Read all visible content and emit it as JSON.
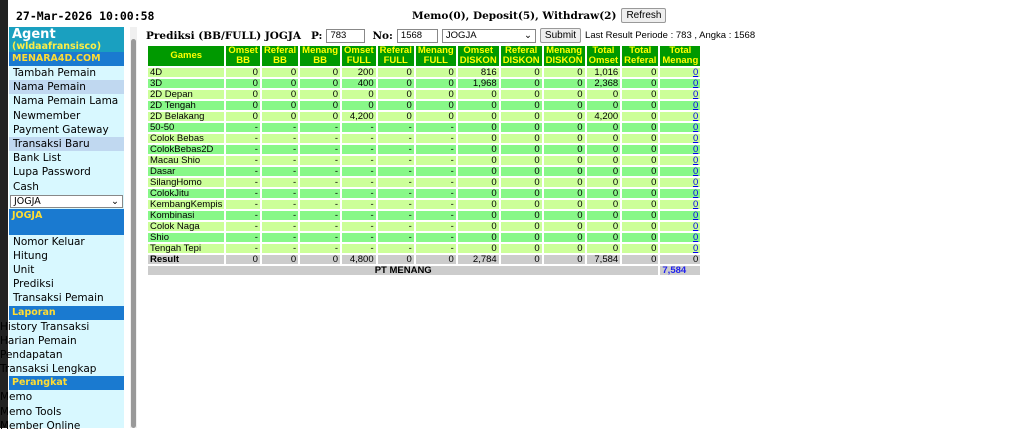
{
  "clock": "27-Mar-2026 10:00:58",
  "sidebar": {
    "agent": "Agent",
    "user": "(wldaafransisco)",
    "site": "MENARA4D.COM",
    "items": [
      "Tambah Pemain",
      "Nama Pemain",
      "Nama Pemain Lama",
      "Newmember",
      "Payment Gateway",
      "Transaksi Baru",
      "Bank List",
      "Lupa Password",
      "Cash"
    ],
    "market_select": "JOGJA",
    "market_header": "JOGJA",
    "market_items": [
      "Nomor Keluar",
      "Hitung",
      "Unit",
      "Prediksi",
      "Transaksi Pemain"
    ],
    "laporan": "Laporan",
    "laporan_items": [
      "History Transaksi",
      "Harian Pemain",
      "Pendapatan",
      "Transaksi Lengkap"
    ],
    "perangkat": "Perangkat",
    "perangkat_items": [
      "Memo",
      "Memo Tools",
      "Member Online"
    ]
  },
  "header": {
    "status": "Memo(0), Deposit(5), Withdraw(2)",
    "refresh": "Refresh"
  },
  "form": {
    "title": "Prediksi (BB/FULL) JOGJA",
    "p_label": "P:",
    "p_value": "783",
    "no_label": "No:",
    "no_value": "1568",
    "market": "JOGJA",
    "submit": "Submit",
    "last_result": "Last Result Periode : 783 , Angka : 1568"
  },
  "table": {
    "headers": [
      [
        "Games"
      ],
      [
        "Omset",
        "BB"
      ],
      [
        "Referal",
        "BB"
      ],
      [
        "Menang",
        "BB"
      ],
      [
        "Omset",
        "FULL"
      ],
      [
        "Referal",
        "FULL"
      ],
      [
        "Menang",
        "FULL"
      ],
      [
        "Omset",
        "DISKON"
      ],
      [
        "Referal",
        "DISKON"
      ],
      [
        "Menang",
        "DISKON"
      ],
      [
        "Total",
        "Omset"
      ],
      [
        "Total",
        "Referal"
      ],
      [
        "Total",
        "Menang"
      ]
    ],
    "rows": [
      [
        "4D",
        "0",
        "0",
        "0",
        "200",
        "0",
        "0",
        "816",
        "0",
        "0",
        "1,016",
        "0",
        "0"
      ],
      [
        "3D",
        "0",
        "0",
        "0",
        "400",
        "0",
        "0",
        "1,968",
        "0",
        "0",
        "2,368",
        "0",
        "0"
      ],
      [
        "2D Depan",
        "0",
        "0",
        "0",
        "0",
        "0",
        "0",
        "0",
        "0",
        "0",
        "0",
        "0",
        "0"
      ],
      [
        "2D Tengah",
        "0",
        "0",
        "0",
        "0",
        "0",
        "0",
        "0",
        "0",
        "0",
        "0",
        "0",
        "0"
      ],
      [
        "2D Belakang",
        "0",
        "0",
        "0",
        "4,200",
        "0",
        "0",
        "0",
        "0",
        "0",
        "4,200",
        "0",
        "0"
      ],
      [
        "50-50",
        "-",
        "-",
        "-",
        "-",
        "-",
        "-",
        "0",
        "0",
        "0",
        "0",
        "0",
        "0"
      ],
      [
        "Colok Bebas",
        "-",
        "-",
        "-",
        "-",
        "-",
        "-",
        "0",
        "0",
        "0",
        "0",
        "0",
        "0"
      ],
      [
        "ColokBebas2D",
        "-",
        "-",
        "-",
        "-",
        "-",
        "-",
        "0",
        "0",
        "0",
        "0",
        "0",
        "0"
      ],
      [
        "Macau Shio",
        "-",
        "-",
        "-",
        "-",
        "-",
        "-",
        "0",
        "0",
        "0",
        "0",
        "0",
        "0"
      ],
      [
        "Dasar",
        "-",
        "-",
        "-",
        "-",
        "-",
        "-",
        "0",
        "0",
        "0",
        "0",
        "0",
        "0"
      ],
      [
        "SilangHomo",
        "-",
        "-",
        "-",
        "-",
        "-",
        "-",
        "0",
        "0",
        "0",
        "0",
        "0",
        "0"
      ],
      [
        "ColokJitu",
        "-",
        "-",
        "-",
        "-",
        "-",
        "-",
        "0",
        "0",
        "0",
        "0",
        "0",
        "0"
      ],
      [
        "KembangKempis",
        "-",
        "-",
        "-",
        "-",
        "-",
        "-",
        "0",
        "0",
        "0",
        "0",
        "0",
        "0"
      ],
      [
        "Kombinasi",
        "-",
        "-",
        "-",
        "-",
        "-",
        "-",
        "0",
        "0",
        "0",
        "0",
        "0",
        "0"
      ],
      [
        "Colok Naga",
        "-",
        "-",
        "-",
        "-",
        "-",
        "-",
        "0",
        "0",
        "0",
        "0",
        "0",
        "0"
      ],
      [
        "Shio",
        "-",
        "-",
        "-",
        "-",
        "-",
        "-",
        "0",
        "0",
        "0",
        "0",
        "0",
        "0"
      ],
      [
        "Tengah Tepi",
        "-",
        "-",
        "-",
        "-",
        "-",
        "-",
        "0",
        "0",
        "0",
        "0",
        "0",
        "0"
      ]
    ],
    "result": [
      "Result",
      "0",
      "0",
      "0",
      "4,800",
      "0",
      "0",
      "2,784",
      "0",
      "0",
      "7,584",
      "0",
      "0"
    ],
    "pt_label": "PT MENANG",
    "pt_value": "7,584"
  }
}
